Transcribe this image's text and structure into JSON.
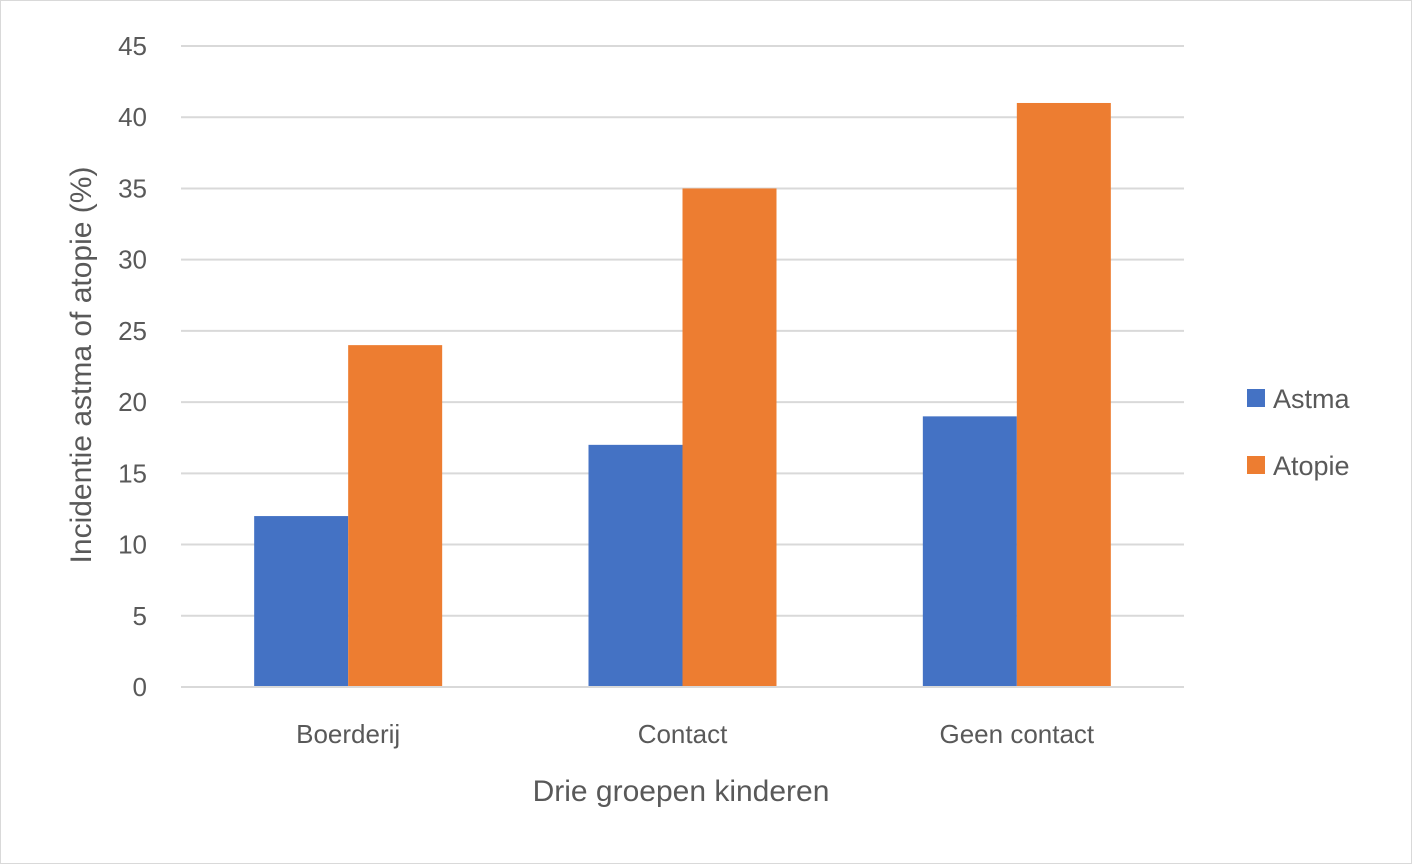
{
  "chart_data": {
    "type": "bar",
    "title": "",
    "xlabel": "Drie groepen kinderen",
    "ylabel": "Incidentie astma of atopie (%)",
    "categories": [
      "Boerderij",
      "Contact",
      "Geen contact"
    ],
    "series": [
      {
        "name": "Astma",
        "color": "#4472C4",
        "values": [
          12,
          17,
          19
        ]
      },
      {
        "name": "Atopie",
        "color": "#ED7D31",
        "values": [
          24,
          35,
          41
        ]
      }
    ],
    "ylim": [
      0,
      45
    ],
    "yticks": [
      "0",
      "5",
      "10",
      "15",
      "20",
      "25",
      "30",
      "35",
      "40",
      "45"
    ],
    "grid": true,
    "legend_position": "right"
  }
}
